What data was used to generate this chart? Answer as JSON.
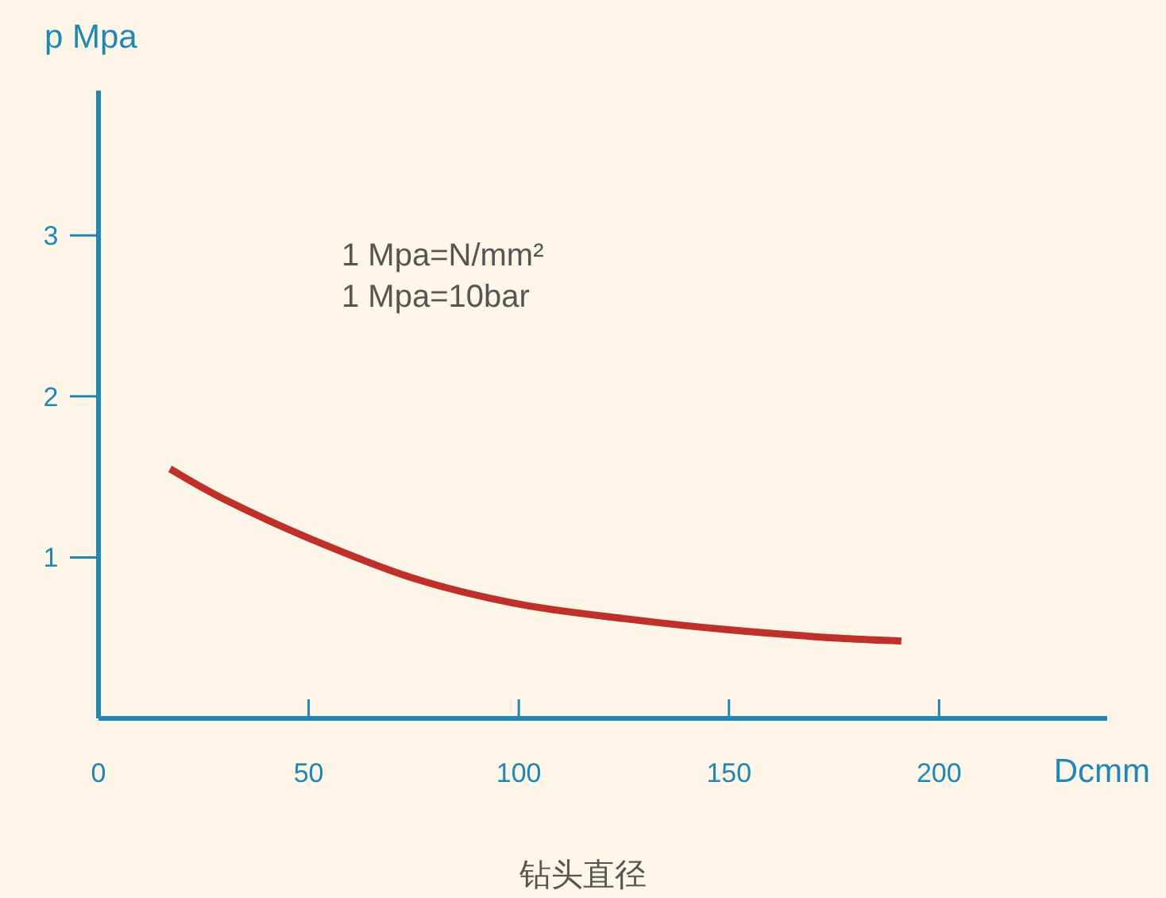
{
  "chart_data": {
    "type": "line",
    "ylabel": "p Mpa",
    "xlabel": "Dcmm",
    "annotations": [
      "1 Mpa=N/mm²",
      "1 Mpa=10bar",
      "钻头直径"
    ],
    "x": [
      17,
      30,
      50,
      75,
      100,
      125,
      150,
      175,
      191
    ],
    "series": [
      {
        "color": "#c0302a",
        "values": [
          1.55,
          1.36,
          1.12,
          0.87,
          0.71,
          0.62,
          0.55,
          0.5,
          0.48
        ]
      }
    ],
    "xlim": [
      0,
      240
    ],
    "ylim": [
      0,
      3.9
    ],
    "xticks": [
      0,
      50,
      100,
      150,
      200
    ],
    "yticks": [
      1,
      2,
      3
    ],
    "marker": "none",
    "line_style": "solid"
  }
}
